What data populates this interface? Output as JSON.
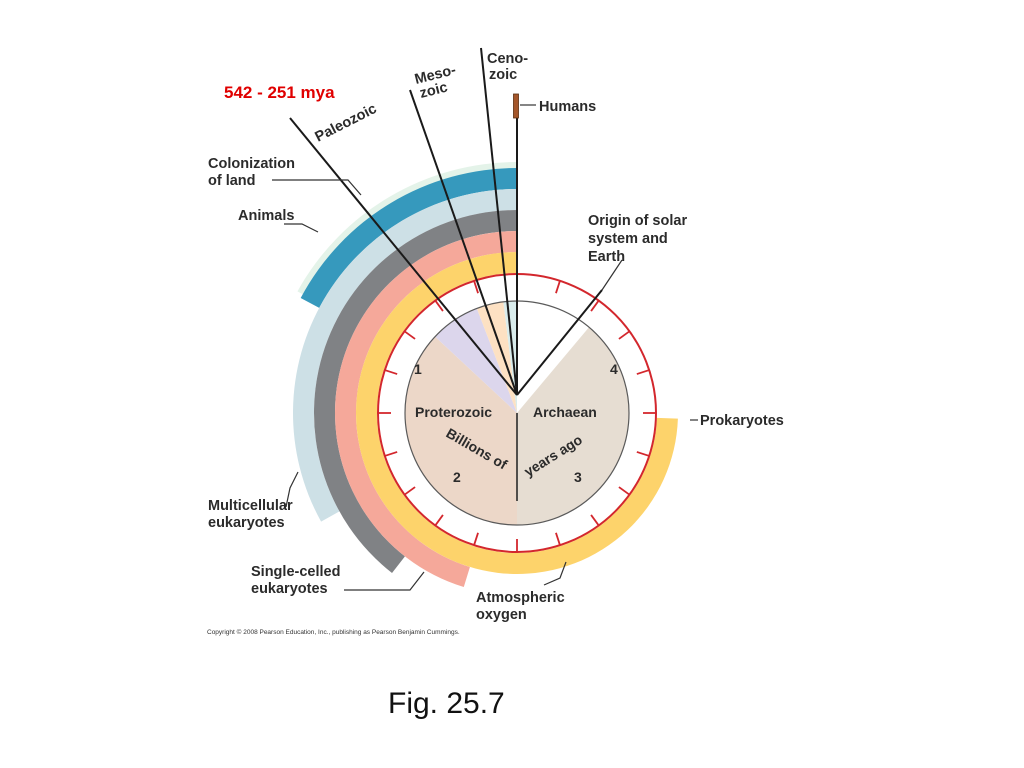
{
  "highlight": {
    "text": "542 - 251 mya",
    "color": "#e00000"
  },
  "eras": {
    "paleozoic": "Paleozoic",
    "mesozoic_line1": "Meso-",
    "mesozoic_line2": "zoic",
    "cenozoic_line1": "Ceno-",
    "cenozoic_line2": "zoic"
  },
  "events": {
    "humans": "Humans",
    "colonization_line1": "Colonization",
    "colonization_line2": "of land",
    "animals": "Animals",
    "origin_line1": "Origin of solar",
    "origin_line2": "system and",
    "origin_line3": "Earth",
    "prokaryotes": "Prokaryotes",
    "multicellular_line1": "Multicellular",
    "multicellular_line2": "eukaryotes",
    "single_line1": "Single-celled",
    "single_line2": "eukaryotes",
    "oxygen_line1": "Atmospheric",
    "oxygen_line2": "oxygen"
  },
  "clock": {
    "eons": {
      "proterozoic": "Proterozoic",
      "archaean": "Archaean"
    },
    "units_left": "Billions of",
    "units_right": "years ago",
    "numbers": [
      "1",
      "2",
      "3",
      "4"
    ]
  },
  "copyright": "Copyright © 2008 Pearson Education, Inc., publishing as Pearson Benjamin Cummings.",
  "caption": "Fig. 25.7",
  "colors": {
    "archaean": "#e6ddd2",
    "proterozoic": "#ecd7c8",
    "paleozoic_wedge": "#dcd6ec",
    "mesozoic_wedge": "#fde1c3",
    "cenozoic_wedge": "#d9ecec",
    "prokaryotes": "#fdd36b",
    "oxygen": "#f5a89a",
    "single_celled": "#808285",
    "multicellular": "#cde0e6",
    "animals": "#3699bd",
    "land": "#e4f3e9",
    "clock_ring": "#d3272d",
    "humans": "#a4562a"
  }
}
